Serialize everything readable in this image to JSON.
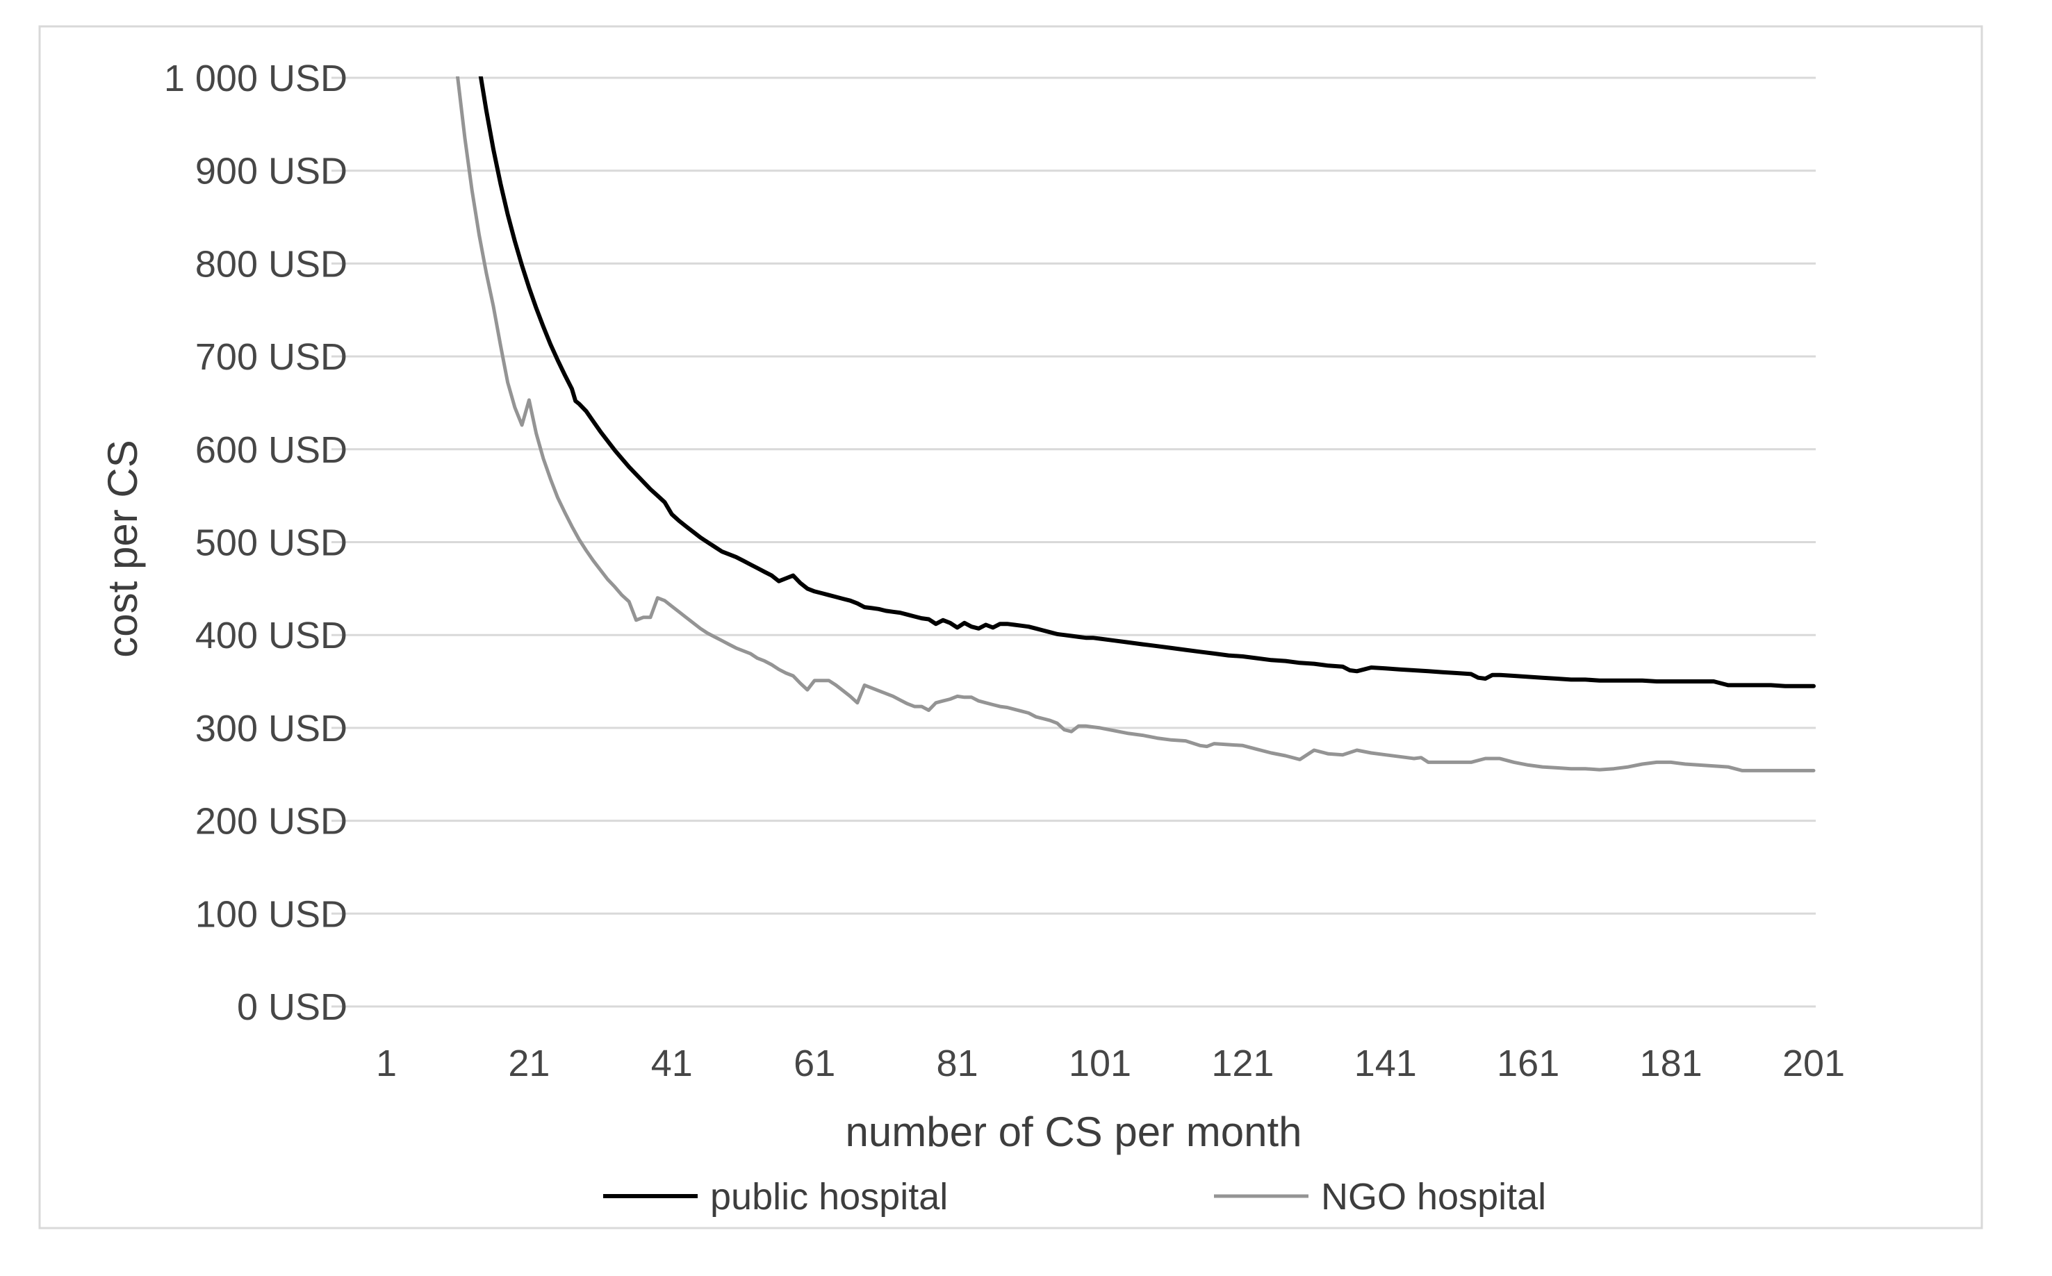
{
  "chart_data": {
    "type": "line",
    "title": "",
    "xlabel": "number of CS per month",
    "ylabel": "cost per CS",
    "xlim": [
      1,
      201
    ],
    "ylim": [
      0,
      1000
    ],
    "grid": true,
    "legend_position": "bottom",
    "x_ticks": [
      1,
      21,
      41,
      61,
      81,
      101,
      121,
      141,
      161,
      181,
      201
    ],
    "y_ticks": [
      {
        "value": 0,
        "label": "0 USD"
      },
      {
        "value": 100,
        "label": "100 USD"
      },
      {
        "value": 200,
        "label": "200 USD"
      },
      {
        "value": 300,
        "label": "300 USD"
      },
      {
        "value": 400,
        "label": "400 USD"
      },
      {
        "value": 500,
        "label": "500 USD"
      },
      {
        "value": 600,
        "label": "600 USD"
      },
      {
        "value": 700,
        "label": "700 USD"
      },
      {
        "value": 800,
        "label": "800 USD"
      },
      {
        "value": 900,
        "label": "900 USD"
      },
      {
        "value": 1000,
        "label": "1 000 USD"
      }
    ],
    "colors": {
      "public_hospital_line": "#000000",
      "ngo_hospital_line": "#949494",
      "gridline": "#d9d9d9",
      "chart_border": "#d9d9d9",
      "tick_text": "#464646",
      "title_text": "#3d3d3d"
    },
    "series": [
      {
        "name": "public hospital",
        "color": "#000000",
        "stroke_width": 6,
        "points": [
          [
            13,
            1067
          ],
          [
            14,
            1012
          ],
          [
            15,
            965
          ],
          [
            16,
            923
          ],
          [
            17,
            886
          ],
          [
            18,
            853
          ],
          [
            19,
            824
          ],
          [
            20,
            798
          ],
          [
            21,
            774
          ],
          [
            22,
            752
          ],
          [
            23,
            732
          ],
          [
            24,
            713
          ],
          [
            25,
            696
          ],
          [
            26,
            680
          ],
          [
            27,
            665
          ],
          [
            27.5,
            652
          ],
          [
            28,
            649
          ],
          [
            29,
            641
          ],
          [
            30,
            630
          ],
          [
            31,
            619
          ],
          [
            32,
            609
          ],
          [
            33,
            599
          ],
          [
            34,
            590
          ],
          [
            35,
            581
          ],
          [
            36,
            573
          ],
          [
            37,
            565
          ],
          [
            38,
            557
          ],
          [
            39,
            550
          ],
          [
            40,
            543
          ],
          [
            41,
            530
          ],
          [
            42,
            523
          ],
          [
            43,
            517
          ],
          [
            44,
            511
          ],
          [
            45,
            505
          ],
          [
            46,
            500
          ],
          [
            47,
            495
          ],
          [
            48,
            490
          ],
          [
            49,
            487
          ],
          [
            50,
            484
          ],
          [
            51,
            480
          ],
          [
            52,
            476
          ],
          [
            53,
            472
          ],
          [
            54,
            468
          ],
          [
            55,
            464
          ],
          [
            56,
            458
          ],
          [
            57,
            461
          ],
          [
            58,
            464
          ],
          [
            59,
            456
          ],
          [
            60,
            450
          ],
          [
            61,
            447
          ],
          [
            62,
            445
          ],
          [
            63,
            443
          ],
          [
            64,
            441
          ],
          [
            65,
            439
          ],
          [
            66,
            437
          ],
          [
            67,
            434
          ],
          [
            68,
            430
          ],
          [
            69,
            429
          ],
          [
            70,
            428
          ],
          [
            71,
            426
          ],
          [
            72,
            425
          ],
          [
            73,
            424
          ],
          [
            74,
            422
          ],
          [
            75,
            420
          ],
          [
            76,
            418
          ],
          [
            77,
            417
          ],
          [
            78,
            412
          ],
          [
            79,
            416
          ],
          [
            80,
            413
          ],
          [
            81,
            408
          ],
          [
            82,
            413
          ],
          [
            83,
            409
          ],
          [
            84,
            407
          ],
          [
            85,
            411
          ],
          [
            86,
            408
          ],
          [
            87,
            412
          ],
          [
            88,
            412
          ],
          [
            89,
            411
          ],
          [
            90,
            410
          ],
          [
            91,
            409
          ],
          [
            92,
            407
          ],
          [
            93,
            405
          ],
          [
            94,
            403
          ],
          [
            95,
            401
          ],
          [
            96,
            400
          ],
          [
            97,
            399
          ],
          [
            98,
            398
          ],
          [
            99,
            397
          ],
          [
            100,
            397
          ],
          [
            101,
            396
          ],
          [
            103,
            394
          ],
          [
            105,
            392
          ],
          [
            107,
            390
          ],
          [
            109,
            388
          ],
          [
            111,
            386
          ],
          [
            113,
            384
          ],
          [
            115,
            382
          ],
          [
            117,
            380
          ],
          [
            119,
            378
          ],
          [
            121,
            377
          ],
          [
            123,
            375
          ],
          [
            125,
            373
          ],
          [
            127,
            372
          ],
          [
            129,
            370
          ],
          [
            131,
            369
          ],
          [
            133,
            367
          ],
          [
            135,
            366
          ],
          [
            136,
            362
          ],
          [
            137,
            361
          ],
          [
            138,
            363
          ],
          [
            139,
            365
          ],
          [
            141,
            364
          ],
          [
            143,
            363
          ],
          [
            145,
            362
          ],
          [
            147,
            361
          ],
          [
            149,
            360
          ],
          [
            151,
            359
          ],
          [
            153,
            358
          ],
          [
            154,
            354
          ],
          [
            155,
            353
          ],
          [
            156,
            357
          ],
          [
            157,
            357
          ],
          [
            159,
            356
          ],
          [
            161,
            355
          ],
          [
            163,
            354
          ],
          [
            165,
            353
          ],
          [
            167,
            352
          ],
          [
            169,
            352
          ],
          [
            171,
            351
          ],
          [
            173,
            351
          ],
          [
            175,
            351
          ],
          [
            177,
            351
          ],
          [
            179,
            350
          ],
          [
            181,
            350
          ],
          [
            183,
            350
          ],
          [
            185,
            350
          ],
          [
            187,
            350
          ],
          [
            189,
            346
          ],
          [
            191,
            346
          ],
          [
            193,
            346
          ],
          [
            195,
            346
          ],
          [
            197,
            345
          ],
          [
            199,
            345
          ],
          [
            201,
            345
          ]
        ]
      },
      {
        "name": "NGO hospital",
        "color": "#949494",
        "stroke_width": 5,
        "points": [
          [
            10,
            1079
          ],
          [
            11,
            1000
          ],
          [
            12,
            935
          ],
          [
            13,
            879
          ],
          [
            14,
            831
          ],
          [
            15,
            790
          ],
          [
            16,
            754
          ],
          [
            17,
            712
          ],
          [
            18,
            672
          ],
          [
            19,
            645
          ],
          [
            20,
            626
          ],
          [
            21,
            653
          ],
          [
            22,
            617
          ],
          [
            23,
            590
          ],
          [
            24,
            568
          ],
          [
            25,
            548
          ],
          [
            26,
            532
          ],
          [
            27,
            517
          ],
          [
            28,
            503
          ],
          [
            29,
            491
          ],
          [
            30,
            480
          ],
          [
            31,
            470
          ],
          [
            32,
            460
          ],
          [
            33,
            452
          ],
          [
            34,
            443
          ],
          [
            35,
            436
          ],
          [
            36,
            416
          ],
          [
            37,
            419
          ],
          [
            38,
            419
          ],
          [
            39,
            440
          ],
          [
            40,
            437
          ],
          [
            41,
            431
          ],
          [
            42,
            425
          ],
          [
            43,
            419
          ],
          [
            44,
            413
          ],
          [
            45,
            407
          ],
          [
            46,
            402
          ],
          [
            47,
            398
          ],
          [
            48,
            394
          ],
          [
            49,
            390
          ],
          [
            50,
            386
          ],
          [
            51,
            383
          ],
          [
            52,
            380
          ],
          [
            53,
            375
          ],
          [
            54,
            372
          ],
          [
            55,
            368
          ],
          [
            56,
            363
          ],
          [
            57,
            359
          ],
          [
            58,
            356
          ],
          [
            59,
            348
          ],
          [
            60,
            341
          ],
          [
            61,
            351
          ],
          [
            62,
            351
          ],
          [
            63,
            351
          ],
          [
            64,
            346
          ],
          [
            65,
            340
          ],
          [
            66,
            334
          ],
          [
            67,
            327
          ],
          [
            68,
            346
          ],
          [
            69,
            343
          ],
          [
            70,
            340
          ],
          [
            71,
            337
          ],
          [
            72,
            334
          ],
          [
            73,
            330
          ],
          [
            74,
            326
          ],
          [
            75,
            323
          ],
          [
            76,
            323
          ],
          [
            77,
            319
          ],
          [
            78,
            327
          ],
          [
            79,
            329
          ],
          [
            80,
            331
          ],
          [
            81,
            334
          ],
          [
            82,
            333
          ],
          [
            83,
            333
          ],
          [
            84,
            329
          ],
          [
            85,
            327
          ],
          [
            86,
            325
          ],
          [
            87,
            323
          ],
          [
            88,
            322
          ],
          [
            89,
            320
          ],
          [
            90,
            318
          ],
          [
            91,
            316
          ],
          [
            92,
            312
          ],
          [
            93,
            310
          ],
          [
            94,
            308
          ],
          [
            95,
            305
          ],
          [
            96,
            298
          ],
          [
            97,
            296
          ],
          [
            98,
            302
          ],
          [
            99,
            302
          ],
          [
            100,
            301
          ],
          [
            101,
            300
          ],
          [
            103,
            297
          ],
          [
            105,
            294
          ],
          [
            107,
            292
          ],
          [
            109,
            289
          ],
          [
            111,
            287
          ],
          [
            113,
            286
          ],
          [
            115,
            281
          ],
          [
            116,
            280
          ],
          [
            117,
            283
          ],
          [
            119,
            282
          ],
          [
            121,
            281
          ],
          [
            123,
            277
          ],
          [
            125,
            273
          ],
          [
            127,
            270
          ],
          [
            129,
            266
          ],
          [
            131,
            276
          ],
          [
            133,
            272
          ],
          [
            135,
            271
          ],
          [
            137,
            276
          ],
          [
            139,
            273
          ],
          [
            141,
            271
          ],
          [
            143,
            269
          ],
          [
            145,
            267
          ],
          [
            146,
            268
          ],
          [
            147,
            263
          ],
          [
            149,
            263
          ],
          [
            151,
            263
          ],
          [
            153,
            263
          ],
          [
            155,
            267
          ],
          [
            157,
            267
          ],
          [
            159,
            263
          ],
          [
            161,
            260
          ],
          [
            163,
            258
          ],
          [
            165,
            257
          ],
          [
            167,
            256
          ],
          [
            169,
            256
          ],
          [
            171,
            255
          ],
          [
            173,
            256
          ],
          [
            175,
            258
          ],
          [
            177,
            261
          ],
          [
            179,
            263
          ],
          [
            181,
            263
          ],
          [
            183,
            261
          ],
          [
            185,
            260
          ],
          [
            187,
            259
          ],
          [
            189,
            258
          ],
          [
            191,
            254
          ],
          [
            193,
            254
          ],
          [
            195,
            254
          ],
          [
            197,
            254
          ],
          [
            199,
            254
          ],
          [
            201,
            254
          ]
        ]
      }
    ]
  }
}
